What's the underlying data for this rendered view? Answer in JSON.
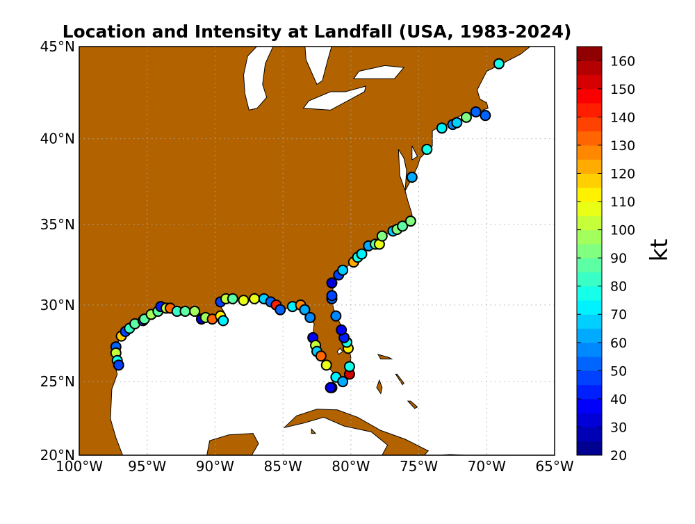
{
  "chart_data": {
    "type": "scatter",
    "title": "Location and Intensity at Landfall (USA, 1983-2024)",
    "projection": "mercator",
    "xlim": [
      -100,
      -65
    ],
    "ylim": [
      20,
      45
    ],
    "grid": true,
    "x_ticks": [
      -100,
      -95,
      -90,
      -85,
      -80,
      -75,
      -70,
      -65
    ],
    "x_tick_labels": [
      "100°W",
      "95°W",
      "90°W",
      "85°W",
      "80°W",
      "75°W",
      "70°W",
      "65°W"
    ],
    "y_ticks": [
      20,
      25,
      30,
      35,
      40,
      45
    ],
    "y_tick_labels": [
      "20°N",
      "25°N",
      "30°N",
      "35°N",
      "40°N",
      "45°N"
    ],
    "colors": {
      "land": "#b36200",
      "water": "#ffffff",
      "marker_edge": "#000000"
    },
    "colorbar": {
      "label": "kt",
      "range": [
        20,
        165
      ],
      "step": 5,
      "colormap": "jet",
      "ticks": [
        20,
        30,
        40,
        50,
        60,
        70,
        80,
        90,
        100,
        110,
        120,
        130,
        140,
        150,
        160
      ],
      "tick_labels": [
        "20",
        "30",
        "40",
        "50",
        "60",
        "70",
        "80",
        "90",
        "100",
        "110",
        "120",
        "130",
        "140",
        "150",
        "160"
      ]
    },
    "points_columns": [
      "lon",
      "lat",
      "intensity_kt"
    ],
    "points": [
      [
        -97.3,
        27.3,
        50
      ],
      [
        -97.3,
        26.9,
        100
      ],
      [
        -97.2,
        26.4,
        75
      ],
      [
        -97.1,
        26.1,
        45
      ],
      [
        -96.9,
        28.0,
        115
      ],
      [
        -96.6,
        28.3,
        45
      ],
      [
        -96.3,
        28.5,
        80
      ],
      [
        -95.9,
        28.8,
        85
      ],
      [
        -95.3,
        29.0,
        45
      ],
      [
        -95.2,
        29.1,
        85
      ],
      [
        -94.7,
        29.4,
        95
      ],
      [
        -94.2,
        29.6,
        85
      ],
      [
        -94.0,
        29.9,
        40
      ],
      [
        -93.6,
        29.8,
        100
      ],
      [
        -93.3,
        29.8,
        130
      ],
      [
        -92.8,
        29.6,
        80
      ],
      [
        -92.2,
        29.6,
        85
      ],
      [
        -91.5,
        29.6,
        95
      ],
      [
        -91.0,
        29.1,
        30
      ],
      [
        -90.7,
        29.2,
        95
      ],
      [
        -90.2,
        29.1,
        130
      ],
      [
        -89.6,
        29.3,
        110
      ],
      [
        -89.4,
        29.0,
        70
      ],
      [
        -89.6,
        30.2,
        45
      ],
      [
        -89.2,
        30.4,
        100
      ],
      [
        -88.7,
        30.4,
        85
      ],
      [
        -87.9,
        30.3,
        105
      ],
      [
        -87.1,
        30.4,
        105
      ],
      [
        -86.4,
        30.4,
        65
      ],
      [
        -85.9,
        30.2,
        50
      ],
      [
        -85.5,
        30.0,
        140
      ],
      [
        -85.2,
        29.7,
        50
      ],
      [
        -84.3,
        29.9,
        70
      ],
      [
        -83.7,
        30.0,
        125
      ],
      [
        -83.4,
        29.7,
        60
      ],
      [
        -83.0,
        29.2,
        55
      ],
      [
        -82.8,
        27.9,
        35
      ],
      [
        -82.6,
        27.4,
        100
      ],
      [
        -82.5,
        27.0,
        65
      ],
      [
        -82.2,
        26.7,
        130
      ],
      [
        -81.8,
        26.1,
        105
      ],
      [
        -81.4,
        24.6,
        115
      ],
      [
        -81.5,
        24.6,
        35
      ],
      [
        -81.1,
        25.3,
        70
      ],
      [
        -80.6,
        25.0,
        60
      ],
      [
        -80.1,
        25.5,
        150
      ],
      [
        -80.1,
        26.0,
        75
      ],
      [
        -80.2,
        27.2,
        110
      ],
      [
        -80.3,
        27.6,
        75
      ],
      [
        -80.5,
        27.9,
        40
      ],
      [
        -80.7,
        28.4,
        35
      ],
      [
        -81.1,
        29.3,
        55
      ],
      [
        -81.4,
        30.4,
        50
      ],
      [
        -81.4,
        30.6,
        45
      ],
      [
        -81.4,
        31.4,
        30
      ],
      [
        -80.9,
        31.9,
        45
      ],
      [
        -80.6,
        32.2,
        65
      ],
      [
        -79.8,
        32.7,
        120
      ],
      [
        -79.5,
        33.0,
        75
      ],
      [
        -79.2,
        33.2,
        70
      ],
      [
        -78.7,
        33.7,
        60
      ],
      [
        -78.2,
        33.8,
        85
      ],
      [
        -77.9,
        33.8,
        105
      ],
      [
        -77.7,
        34.3,
        90
      ],
      [
        -76.9,
        34.6,
        65
      ],
      [
        -76.6,
        34.7,
        90
      ],
      [
        -76.2,
        34.9,
        85
      ],
      [
        -75.6,
        35.2,
        90
      ],
      [
        -75.5,
        37.8,
        60
      ],
      [
        -74.4,
        39.4,
        75
      ],
      [
        -73.3,
        40.6,
        70
      ],
      [
        -72.5,
        40.8,
        55
      ],
      [
        -72.2,
        40.9,
        65
      ],
      [
        -71.5,
        41.2,
        90
      ],
      [
        -70.8,
        41.5,
        50
      ],
      [
        -70.1,
        41.3,
        50
      ],
      [
        -69.1,
        44.1,
        75
      ]
    ]
  }
}
